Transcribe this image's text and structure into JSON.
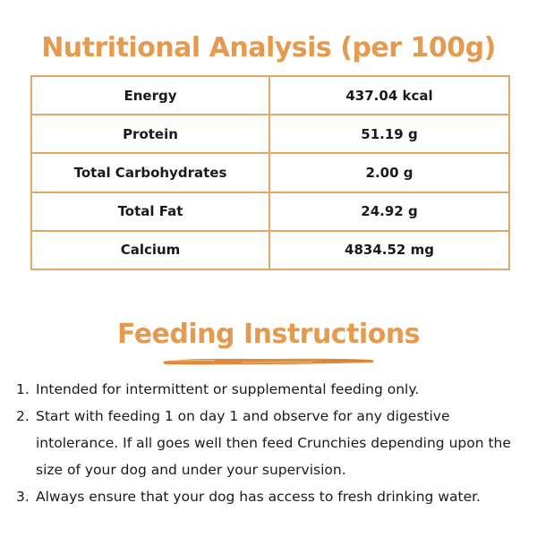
{
  "nutrition": {
    "title": "Nutritional Analysis (per 100g)",
    "rows": [
      {
        "nutrient": "Energy",
        "value": "437.04 kcal"
      },
      {
        "nutrient": "Protein",
        "value": "51.19 g"
      },
      {
        "nutrient": "Total Carbohydrates",
        "value": "2.00 g"
      },
      {
        "nutrient": "Total Fat",
        "value": "24.92 g"
      },
      {
        "nutrient": "Calcium",
        "value": "4834.52 mg"
      }
    ]
  },
  "feeding": {
    "title": "Feeding Instructions",
    "items": [
      {
        "number": "1.",
        "text": "Intended for intermittent or supplemental feeding only."
      },
      {
        "number": "2.",
        "text": "Start with feeding 1 on day 1 and observe for any digestive intolerance. If all goes well then feed Crunchies depending upon the size of your dog and under your supervision."
      },
      {
        "number": "3.",
        "text": "Always ensure that your dog has access to fresh drinking water."
      }
    ]
  },
  "colors": {
    "accent": "#e59a4e",
    "table_border": "#e2a86a",
    "text": "#1a1a1a",
    "background": "#ffffff"
  }
}
